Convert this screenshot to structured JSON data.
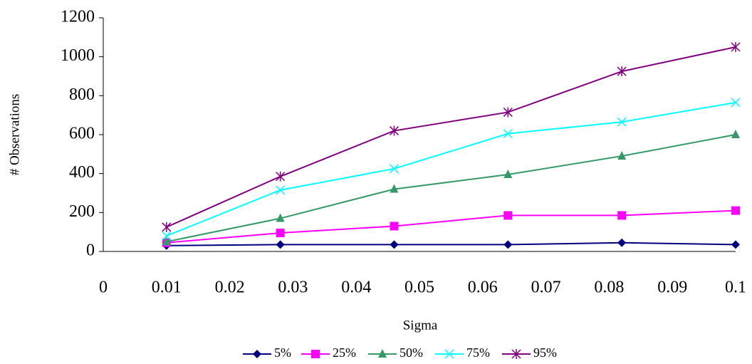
{
  "chart_data": {
    "type": "line",
    "x_label": "Sigma",
    "y_label": "# Observations",
    "x": [
      0.01,
      0.028,
      0.046,
      0.064,
      0.082,
      0.1
    ],
    "series": [
      {
        "name": "5%",
        "color": "#000080",
        "marker": "diamond",
        "values": [
          30,
          35,
          35,
          35,
          45,
          35
        ]
      },
      {
        "name": "25%",
        "color": "#ff00ff",
        "marker": "square",
        "values": [
          45,
          95,
          130,
          185,
          185,
          210
        ]
      },
      {
        "name": "50%",
        "color": "#339966",
        "marker": "triangle",
        "values": [
          50,
          170,
          320,
          395,
          490,
          600
        ]
      },
      {
        "name": "75%",
        "color": "#00ffff",
        "marker": "x",
        "values": [
          80,
          315,
          425,
          605,
          665,
          765
        ]
      },
      {
        "name": "95%",
        "color": "#800080",
        "marker": "star",
        "values": [
          125,
          385,
          620,
          715,
          925,
          1050
        ]
      }
    ],
    "xlim": [
      0,
      0.1
    ],
    "xticks": [
      0,
      0.01,
      0.02,
      0.03,
      0.04,
      0.05,
      0.06,
      0.07,
      0.08,
      0.09,
      0.1
    ],
    "ylim": [
      0,
      1200
    ],
    "yticks": [
      0,
      200,
      400,
      600,
      800,
      1000,
      1200
    ],
    "grid": false,
    "legend": "bottom"
  }
}
